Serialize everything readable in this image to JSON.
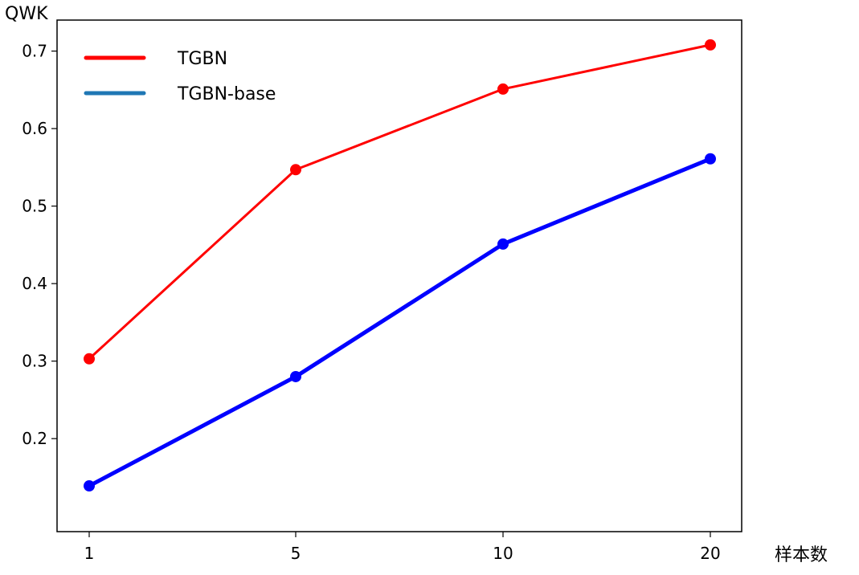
{
  "chart_data": {
    "type": "line",
    "xlabel": "样本数",
    "ylabel": "QWK",
    "categories": [
      "1",
      "5",
      "10",
      "20"
    ],
    "ylim": [
      0.08,
      0.74
    ],
    "yticks": [
      0.2,
      0.3,
      0.4,
      0.5,
      0.6,
      0.7
    ],
    "ytick_labels": [
      "0.2",
      "0.3",
      "0.4",
      "0.5",
      "0.6",
      "0.7"
    ],
    "legend_position": "upper-left",
    "grid": false,
    "series": [
      {
        "name": "TGBN",
        "color": "#ff0000",
        "legend_color": "#ff0000",
        "values": [
          0.303,
          0.547,
          0.651,
          0.708
        ]
      },
      {
        "name": "TGBN-base",
        "color": "#0000ff",
        "legend_color": "#1f77b4",
        "values": [
          0.139,
          0.28,
          0.451,
          0.561
        ]
      }
    ]
  }
}
